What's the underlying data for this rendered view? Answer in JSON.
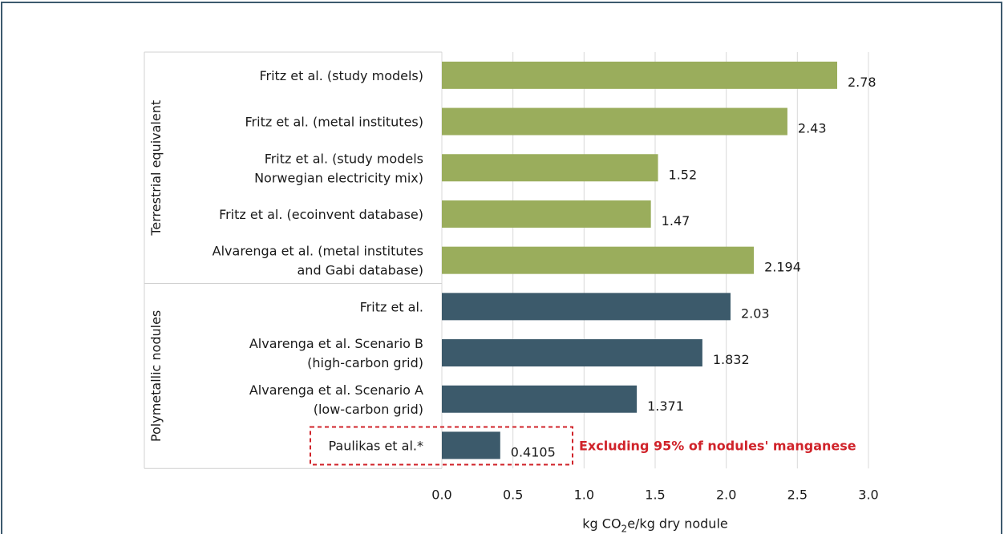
{
  "chart_data": {
    "type": "bar",
    "orientation": "horizontal",
    "xlabel_parts": [
      "kg CO",
      "2",
      "e/kg dry nodule"
    ],
    "xlim": [
      0,
      3.0
    ],
    "xticks": [
      "0.0",
      "0.5",
      "1.0",
      "1.5",
      "2.0",
      "2.5",
      "3.0"
    ],
    "grid": "vertical",
    "groups": [
      {
        "name": "Terrestrial equivalent",
        "color": "#9aad5c",
        "items": [
          {
            "lines": [
              "Fritz et al. (study models)"
            ],
            "value": 2.78,
            "label": "2.78"
          },
          {
            "lines": [
              "Fritz et al. (metal institutes)"
            ],
            "value": 2.43,
            "label": "2.43"
          },
          {
            "lines": [
              "Fritz et al. (study models",
              "Norwegian electricity mix)"
            ],
            "value": 1.52,
            "label": "1.52"
          },
          {
            "lines": [
              "Fritz et al. (ecoinvent database)"
            ],
            "value": 1.47,
            "label": "1.47"
          },
          {
            "lines": [
              "Alvarenga et al. (metal institutes",
              "and Gabi database)"
            ],
            "value": 2.194,
            "label": "2.194"
          }
        ]
      },
      {
        "name": "Polymetallic nodules",
        "color": "#3c5a6b",
        "items": [
          {
            "lines": [
              "Fritz et al."
            ],
            "value": 2.03,
            "label": "2.03"
          },
          {
            "lines": [
              "Alvarenga et al. Scenario B",
              "(high-carbon grid)"
            ],
            "value": 1.832,
            "label": "1.832"
          },
          {
            "lines": [
              "Alvarenga et al. Scenario A",
              "(low-carbon grid)"
            ],
            "value": 1.371,
            "label": "1.371"
          },
          {
            "lines": [
              "Paulikas et al.*"
            ],
            "value": 0.4105,
            "label": "0.4105"
          }
        ]
      }
    ],
    "annotation": {
      "text": "Excluding 95% of nodules' manganese",
      "color": "#d0232a",
      "highlighted_item": "Paulikas et al.*"
    }
  }
}
